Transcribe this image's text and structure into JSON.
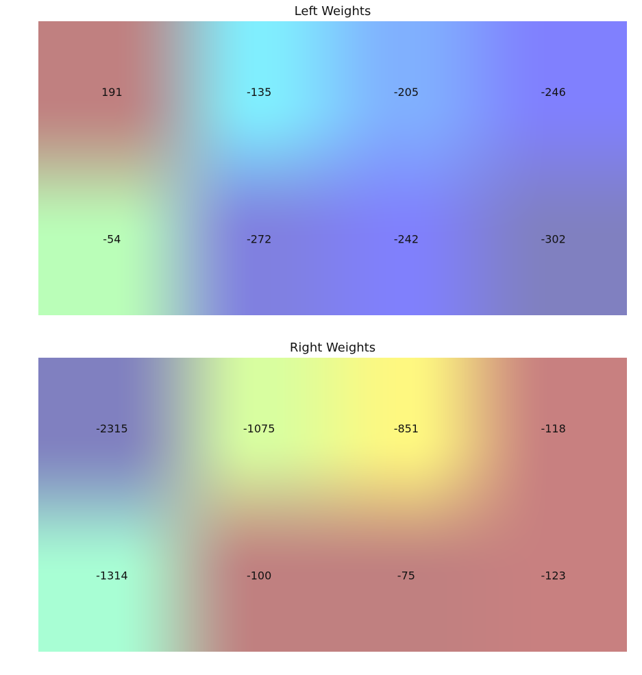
{
  "chart_data": [
    {
      "type": "heatmap",
      "title": "Left Weights",
      "rows": 2,
      "cols": 4,
      "values": [
        [
          191,
          -135,
          -205,
          -246
        ],
        [
          -54,
          -272,
          -242,
          -302
        ]
      ],
      "cell_colors": [
        [
          "#c08080",
          "#80eefe",
          "#80b0fe",
          "#8080fe"
        ],
        [
          "#bafeb8",
          "#8080e0",
          "#8080fc",
          "#8080c0"
        ]
      ],
      "interpolation": "smooth",
      "axes": false
    },
    {
      "type": "heatmap",
      "title": "Right Weights",
      "rows": 2,
      "cols": 4,
      "values": [
        [
          -2315,
          -1075,
          -851,
          -118
        ],
        [
          -1314,
          -100,
          -75,
          -123
        ]
      ],
      "cell_colors": [
        [
          "#8080c0",
          "#d8fea0",
          "#fef880",
          "#c88080"
        ],
        [
          "#a8fed4",
          "#c08080",
          "#c08080",
          "#c88080"
        ]
      ],
      "interpolation": "smooth",
      "axes": false
    }
  ]
}
